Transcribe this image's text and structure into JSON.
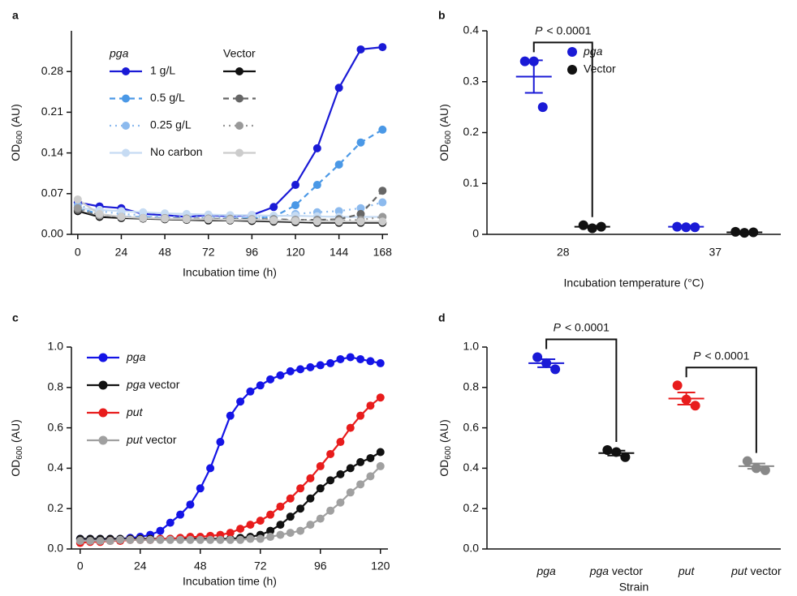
{
  "chart_data": [
    {
      "type": "line",
      "panel": "a",
      "ylabel": [
        "OD",
        "600",
        "(AU)"
      ],
      "xlabel": "Incubation time (h)",
      "x": [
        0,
        12,
        24,
        36,
        48,
        60,
        72,
        84,
        96,
        108,
        120,
        132,
        144,
        156,
        168
      ],
      "xlim": [
        -3.5,
        171
      ],
      "xticks": [
        0,
        24,
        48,
        72,
        96,
        120,
        144,
        168
      ],
      "ylim": [
        0,
        0.35
      ],
      "yticks": [
        {
          "value": 0,
          "label": "0.00"
        },
        0.07,
        0.14,
        0.21,
        0.28
      ],
      "legend_headers": [
        {
          "text": "pga",
          "italic": true
        },
        {
          "text": "Vector"
        }
      ],
      "series": [
        {
          "name": "1 g/L",
          "color": "#1a1ad6",
          "dash": "solid",
          "group": 0,
          "values": [
            0.055,
            0.048,
            0.045,
            0.035,
            0.033,
            0.03,
            0.033,
            0.031,
            0.033,
            0.047,
            0.085,
            0.148,
            0.252,
            0.318,
            0.322
          ]
        },
        {
          "name": "0.5 g/L",
          "color": "#4a98e6",
          "dash": "dashed",
          "group": 0,
          "values": [
            0.045,
            0.035,
            0.03,
            0.03,
            0.028,
            0.027,
            0.027,
            0.027,
            0.028,
            0.03,
            0.05,
            0.085,
            0.12,
            0.158,
            0.18
          ]
        },
        {
          "name": "0.25 g/L",
          "color": "#8cbaee",
          "dash": "dotted",
          "group": 0,
          "values": [
            0.05,
            0.04,
            0.035,
            0.033,
            0.03,
            0.03,
            0.03,
            0.03,
            0.03,
            0.03,
            0.035,
            0.038,
            0.04,
            0.045,
            0.055
          ]
        },
        {
          "name": "No carbon",
          "color": "#c6dbf3",
          "dash": "solid",
          "group": 0,
          "values": [
            0.045,
            0.042,
            0.04,
            0.038,
            0.036,
            0.035,
            0.034,
            0.033,
            0.033,
            0.032,
            0.032,
            0.031,
            0.03,
            0.03,
            0.03
          ]
        },
        {
          "color": "#111111",
          "dash": "solid",
          "group": 1,
          "values": [
            0.04,
            0.03,
            0.028,
            0.027,
            0.026,
            0.025,
            0.024,
            0.024,
            0.023,
            0.022,
            0.021,
            0.02,
            0.02,
            0.02,
            0.02
          ]
        },
        {
          "color": "#666666",
          "dash": "dashed",
          "group": 1,
          "values": [
            0.042,
            0.032,
            0.03,
            0.028,
            0.027,
            0.027,
            0.027,
            0.026,
            0.026,
            0.026,
            0.025,
            0.025,
            0.026,
            0.035,
            0.075
          ]
        },
        {
          "color": "#999999",
          "dash": "dotted",
          "group": 1,
          "values": [
            0.045,
            0.033,
            0.03,
            0.028,
            0.028,
            0.027,
            0.027,
            0.027,
            0.026,
            0.025,
            0.025,
            0.024,
            0.024,
            0.025,
            0.03
          ]
        },
        {
          "color": "#cccccc",
          "dash": "solid",
          "group": 1,
          "values": [
            0.06,
            0.035,
            0.03,
            0.028,
            0.027,
            0.026,
            0.026,
            0.025,
            0.025,
            0.024,
            0.023,
            0.022,
            0.022,
            0.022,
            0.022
          ]
        }
      ]
    },
    {
      "type": "dot",
      "panel": "b",
      "ylabel": [
        "OD",
        "600",
        "(AU)"
      ],
      "xlabel": "Incubation temperature (°C)",
      "categories": [
        "28",
        "37"
      ],
      "ylim": [
        0,
        0.4
      ],
      "yticks": [
        0,
        0.1,
        0.2,
        0.3,
        0.4
      ],
      "legend": "upper right",
      "series": [
        {
          "name": "pga",
          "italic": true,
          "color": "#1a1ad6",
          "values": [
            [
              0.34,
              0.34,
              0.25
            ],
            [
              0.015,
              0.014,
              0.014
            ]
          ],
          "means": [
            0.31,
            0.015
          ],
          "sems": [
            0.032,
            0.002
          ]
        },
        {
          "name": "Vector",
          "color": "#111111",
          "values": [
            [
              0.018,
              0.012,
              0.015
            ],
            [
              0.005,
              0.003,
              0.004
            ]
          ],
          "means": [
            0.015,
            0.004
          ],
          "sems": [
            0.002,
            0.001
          ]
        }
      ],
      "annotations": [
        {
          "p": "P",
          "text": "< 0.0001",
          "between": [
            [
              0,
              0
            ],
            [
              1,
              0
            ]
          ]
        }
      ]
    },
    {
      "type": "line",
      "panel": "c",
      "ylabel": [
        "OD",
        "600",
        "(AU)"
      ],
      "xlabel": "Incubation time (h)",
      "x": [
        0,
        4,
        8,
        12,
        16,
        20,
        24,
        28,
        32,
        36,
        40,
        44,
        48,
        52,
        56,
        60,
        64,
        68,
        72,
        76,
        80,
        84,
        88,
        92,
        96,
        100,
        104,
        108,
        112,
        116,
        120
      ],
      "xlim": [
        -3.5,
        123
      ],
      "xticks": [
        0,
        24,
        48,
        72,
        96,
        120
      ],
      "ylim": [
        0,
        1
      ],
      "yticks": [
        {
          "value": 0,
          "label": "0.0"
        },
        0.2,
        0.4,
        0.6,
        0.8,
        {
          "value": 1,
          "label": "1.0"
        }
      ],
      "series": [
        {
          "name": "pga",
          "italic": true,
          "color": "#1414e6",
          "dash": "solid",
          "values": [
            0.05,
            0.05,
            0.05,
            0.05,
            0.05,
            0.055,
            0.06,
            0.07,
            0.09,
            0.13,
            0.17,
            0.22,
            0.3,
            0.4,
            0.53,
            0.66,
            0.73,
            0.78,
            0.81,
            0.84,
            0.86,
            0.88,
            0.89,
            0.9,
            0.91,
            0.92,
            0.94,
            0.95,
            0.94,
            0.93,
            0.92
          ]
        },
        {
          "name": "pga vector",
          "italic": true,
          "color": "#111111",
          "dash": "solid",
          "values": [
            0.05,
            0.05,
            0.05,
            0.05,
            0.05,
            0.05,
            0.05,
            0.05,
            0.05,
            0.05,
            0.05,
            0.05,
            0.05,
            0.05,
            0.05,
            0.05,
            0.055,
            0.06,
            0.07,
            0.09,
            0.12,
            0.16,
            0.2,
            0.25,
            0.3,
            0.34,
            0.37,
            0.4,
            0.43,
            0.45,
            0.48
          ]
        },
        {
          "name": "put",
          "italic": true,
          "color": "#e81c1c",
          "dash": "solid",
          "values": [
            0.03,
            0.035,
            0.035,
            0.04,
            0.04,
            0.045,
            0.045,
            0.045,
            0.05,
            0.05,
            0.055,
            0.06,
            0.06,
            0.065,
            0.07,
            0.08,
            0.1,
            0.12,
            0.14,
            0.17,
            0.21,
            0.25,
            0.3,
            0.35,
            0.41,
            0.47,
            0.53,
            0.6,
            0.66,
            0.71,
            0.75
          ]
        },
        {
          "name": "put vector",
          "italic": true,
          "color": "#a0a0a0",
          "dash": "solid",
          "values": [
            0.04,
            0.04,
            0.04,
            0.04,
            0.045,
            0.045,
            0.045,
            0.045,
            0.045,
            0.045,
            0.045,
            0.045,
            0.045,
            0.045,
            0.045,
            0.045,
            0.045,
            0.05,
            0.05,
            0.06,
            0.07,
            0.08,
            0.09,
            0.12,
            0.15,
            0.19,
            0.23,
            0.28,
            0.32,
            0.36,
            0.41
          ]
        }
      ]
    },
    {
      "type": "dot",
      "panel": "d",
      "ylabel": [
        "OD",
        "600",
        "(AU)"
      ],
      "xlabel": "Strain",
      "categories": [
        "pga",
        "pga vector",
        "put",
        "put vector"
      ],
      "category_italic": true,
      "colors": [
        "#1a1ad6",
        "#111111",
        "#e81c1c",
        "#888888"
      ],
      "ylim": [
        0,
        1
      ],
      "yticks": [
        {
          "value": 0,
          "label": "0.0"
        },
        0.2,
        0.4,
        0.6,
        0.8,
        {
          "value": 1,
          "label": "1.0"
        }
      ],
      "values": [
        [
          0.95,
          0.92,
          0.89
        ],
        [
          0.49,
          0.48,
          0.455
        ],
        [
          0.81,
          0.74,
          0.71
        ],
        [
          0.435,
          0.4,
          0.39
        ]
      ],
      "means": [
        0.92,
        0.475,
        0.745,
        0.41
      ],
      "sems": [
        0.02,
        0.012,
        0.03,
        0.013
      ],
      "annotations": [
        {
          "p": "P",
          "text": "< 0.0001",
          "between": [
            [
              0,
              0
            ],
            [
              0,
              1
            ]
          ]
        },
        {
          "p": "P",
          "text": "< 0.0001",
          "between": [
            [
              0,
              2
            ],
            [
              0,
              3
            ]
          ]
        }
      ]
    }
  ]
}
